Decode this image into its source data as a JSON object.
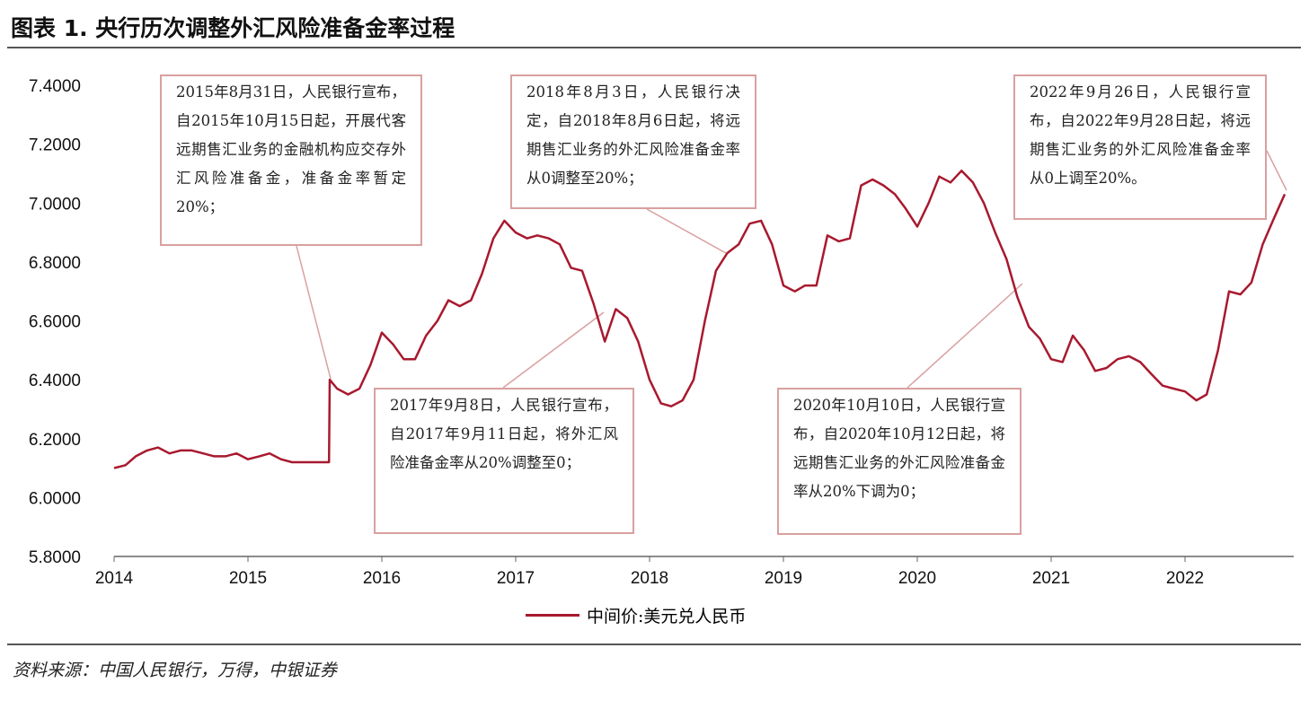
{
  "title": "图表 1. 央行历次调整外汇风险准备金率过程",
  "source": "资料来源：中国人民银行，万得，中银证券",
  "chart_data": {
    "type": "line",
    "title": "图表 1. 央行历次调整外汇风险准备金率过程",
    "xlabel": "",
    "ylabel": "",
    "ylim": [
      5.8,
      7.4
    ],
    "yticks": [
      "7.4000",
      "7.2000",
      "7.0000",
      "6.8000",
      "6.6000",
      "6.4000",
      "6.2000",
      "6.0000",
      "5.8000"
    ],
    "xticks": [
      "2014",
      "2015",
      "2016",
      "2017",
      "2018",
      "2019",
      "2020",
      "2021",
      "2022"
    ],
    "grid": false,
    "legend_position": "bottom",
    "line_color": "#a8192e",
    "series": [
      {
        "name": "中间价:美元兑人民币",
        "dates": [
          "2014-01-01",
          "2014-02-01",
          "2014-03-01",
          "2014-04-01",
          "2014-05-01",
          "2014-06-01",
          "2014-07-01",
          "2014-08-01",
          "2014-09-01",
          "2014-10-01",
          "2014-11-01",
          "2014-12-01",
          "2015-01-01",
          "2015-02-01",
          "2015-03-01",
          "2015-04-01",
          "2015-05-01",
          "2015-06-01",
          "2015-07-01",
          "2015-08-10",
          "2015-08-12",
          "2015-09-01",
          "2015-10-01",
          "2015-11-01",
          "2015-12-01",
          "2016-01-01",
          "2016-02-01",
          "2016-03-01",
          "2016-04-01",
          "2016-05-01",
          "2016-06-01",
          "2016-07-01",
          "2016-08-01",
          "2016-09-01",
          "2016-10-01",
          "2016-11-01",
          "2016-12-01",
          "2017-01-01",
          "2017-02-01",
          "2017-03-01",
          "2017-04-01",
          "2017-05-01",
          "2017-06-01",
          "2017-07-01",
          "2017-08-01",
          "2017-09-01",
          "2017-10-01",
          "2017-11-01",
          "2017-12-01",
          "2018-01-01",
          "2018-02-01",
          "2018-03-01",
          "2018-04-01",
          "2018-05-01",
          "2018-06-01",
          "2018-07-01",
          "2018-08-01",
          "2018-09-01",
          "2018-10-01",
          "2018-11-01",
          "2018-12-01",
          "2019-01-01",
          "2019-02-01",
          "2019-03-01",
          "2019-04-01",
          "2019-05-01",
          "2019-06-01",
          "2019-07-01",
          "2019-08-01",
          "2019-09-01",
          "2019-10-01",
          "2019-11-01",
          "2019-12-01",
          "2020-01-01",
          "2020-02-01",
          "2020-03-01",
          "2020-04-01",
          "2020-05-01",
          "2020-06-01",
          "2020-07-01",
          "2020-08-01",
          "2020-09-01",
          "2020-10-01",
          "2020-11-01",
          "2020-12-01",
          "2021-01-01",
          "2021-02-01",
          "2021-03-01",
          "2021-04-01",
          "2021-05-01",
          "2021-06-01",
          "2021-07-01",
          "2021-08-01",
          "2021-09-01",
          "2021-10-01",
          "2021-11-01",
          "2021-12-01",
          "2022-01-01",
          "2022-02-01",
          "2022-03-01",
          "2022-04-01",
          "2022-05-01",
          "2022-06-01",
          "2022-07-01",
          "2022-08-01",
          "2022-09-01",
          "2022-09-30"
        ],
        "values": [
          6.1,
          6.11,
          6.14,
          6.16,
          6.17,
          6.15,
          6.16,
          6.16,
          6.15,
          6.14,
          6.14,
          6.15,
          6.13,
          6.14,
          6.15,
          6.13,
          6.12,
          6.12,
          6.12,
          6.12,
          6.4,
          6.37,
          6.35,
          6.37,
          6.45,
          6.56,
          6.52,
          6.47,
          6.47,
          6.55,
          6.6,
          6.67,
          6.65,
          6.67,
          6.76,
          6.88,
          6.94,
          6.9,
          6.88,
          6.89,
          6.88,
          6.86,
          6.78,
          6.77,
          6.66,
          6.53,
          6.64,
          6.61,
          6.53,
          6.4,
          6.32,
          6.31,
          6.33,
          6.4,
          6.6,
          6.77,
          6.83,
          6.86,
          6.93,
          6.94,
          6.86,
          6.72,
          6.7,
          6.72,
          6.72,
          6.89,
          6.87,
          6.88,
          7.06,
          7.08,
          7.06,
          7.03,
          6.98,
          6.92,
          7.0,
          7.09,
          7.07,
          7.11,
          7.07,
          7.0,
          6.9,
          6.81,
          6.68,
          6.58,
          6.54,
          6.47,
          6.46,
          6.55,
          6.5,
          6.43,
          6.44,
          6.47,
          6.48,
          6.46,
          6.42,
          6.38,
          6.37,
          6.36,
          6.33,
          6.35,
          6.5,
          6.7,
          6.69,
          6.73,
          6.86,
          6.95,
          7.03
        ]
      }
    ],
    "annotations": [
      "2015年8月31日，人民银行宣布，自2015年10月15日起，开展代客远期售汇业务的金融机构应交存外汇风险准备金，准备金率暂定20%；",
      "2017年9月8日，人民银行宣布，自2017年9月11日起，将外汇风险准备金率从20%调整至0；",
      "2018年8月3日，人民银行决定，自2018年8月6日起，将远期售汇业务的外汇风险准备金率从0调整至20%；",
      "2020年10月10日，人民银行宣布，自2020年10月12日起，将远期售汇业务的外汇风险准备金率从20%下调为0；",
      "2022年9月26日，人民银行宣布，自2022年9月28日起，将远期售汇业务的外汇风险准备金率从0上调至20%。"
    ]
  }
}
